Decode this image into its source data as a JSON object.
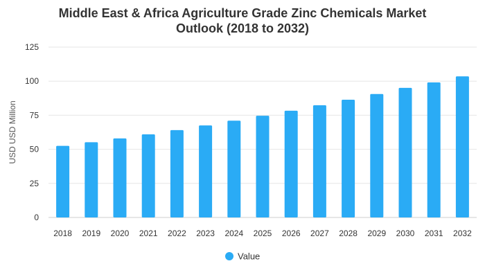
{
  "chart_data": {
    "type": "bar",
    "title_line1": "Middle East & Africa Agriculture Grade Zinc Chemicals Market",
    "title_line2": "Outlook (2018 to 2032)",
    "xlabel": "",
    "ylabel": "USD USD Million",
    "categories": [
      "2018",
      "2019",
      "2020",
      "2021",
      "2022",
      "2023",
      "2024",
      "2025",
      "2026",
      "2027",
      "2028",
      "2029",
      "2030",
      "2031",
      "2032"
    ],
    "series": [
      {
        "name": "Value",
        "color": "#2aabf5",
        "values": [
          52.5,
          55.2,
          58.0,
          61.0,
          64.1,
          67.5,
          71.0,
          74.6,
          78.3,
          82.3,
          86.4,
          90.6,
          95.1,
          99.1,
          103.5
        ]
      }
    ],
    "ylim": [
      0,
      125
    ],
    "yticks": [
      0,
      25,
      50,
      75,
      100,
      125
    ],
    "grid": true,
    "legend_position": "bottom"
  }
}
